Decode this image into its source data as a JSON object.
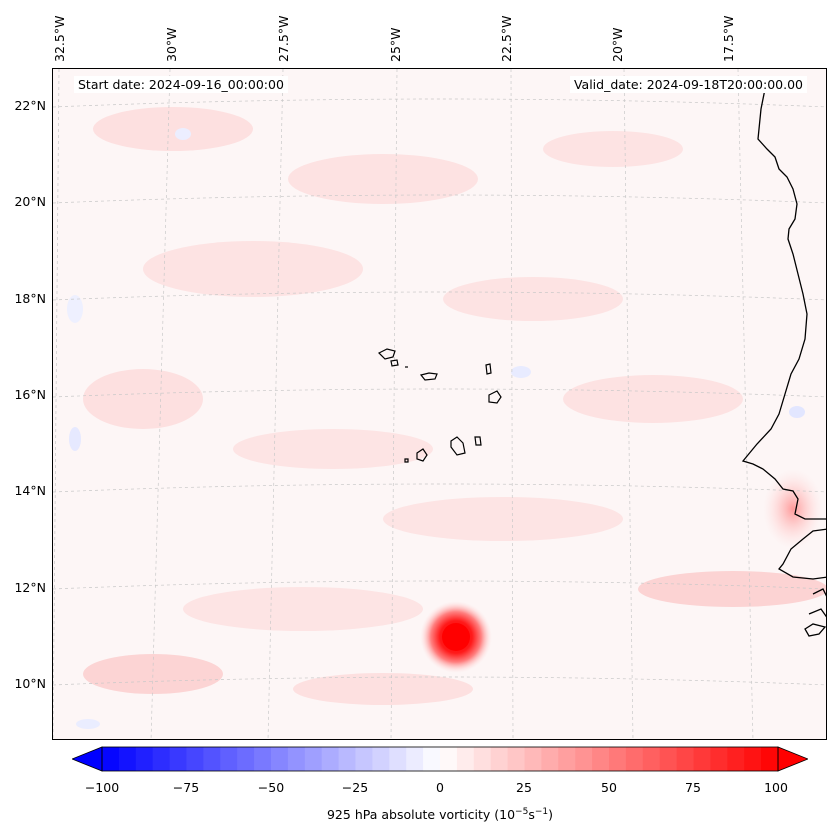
{
  "map": {
    "start_date": "Start date: 2024-09-16_00:00:00",
    "valid_date": "Valid_date: 2024-09-18T20:00:00.00",
    "lon_labels": [
      "32.5°W",
      "30°W",
      "27.5°W",
      "25°W",
      "22.5°W",
      "20°W",
      "17.5°W"
    ],
    "lat_labels": [
      "22°N",
      "20°N",
      "18°N",
      "16°N",
      "14°N",
      "12°N",
      "10°N"
    ],
    "vortex_feature": {
      "lon": -23.3,
      "lat": 11.0,
      "value_approx": 100
    }
  },
  "colorbar": {
    "title": "925 hPa absolute vorticity (10",
    "title_exp1": "−5",
    "title_mid": "s",
    "title_exp2": "−1",
    "title_end": ")",
    "ticks": [
      "−100",
      "−75",
      "−50",
      "−25",
      "0",
      "25",
      "50",
      "75",
      "100"
    ],
    "min": -100,
    "max": 100,
    "levels": 40,
    "colors": {
      "low": "#0000ff",
      "mid": "#ffffff",
      "high": "#ff0000"
    }
  }
}
